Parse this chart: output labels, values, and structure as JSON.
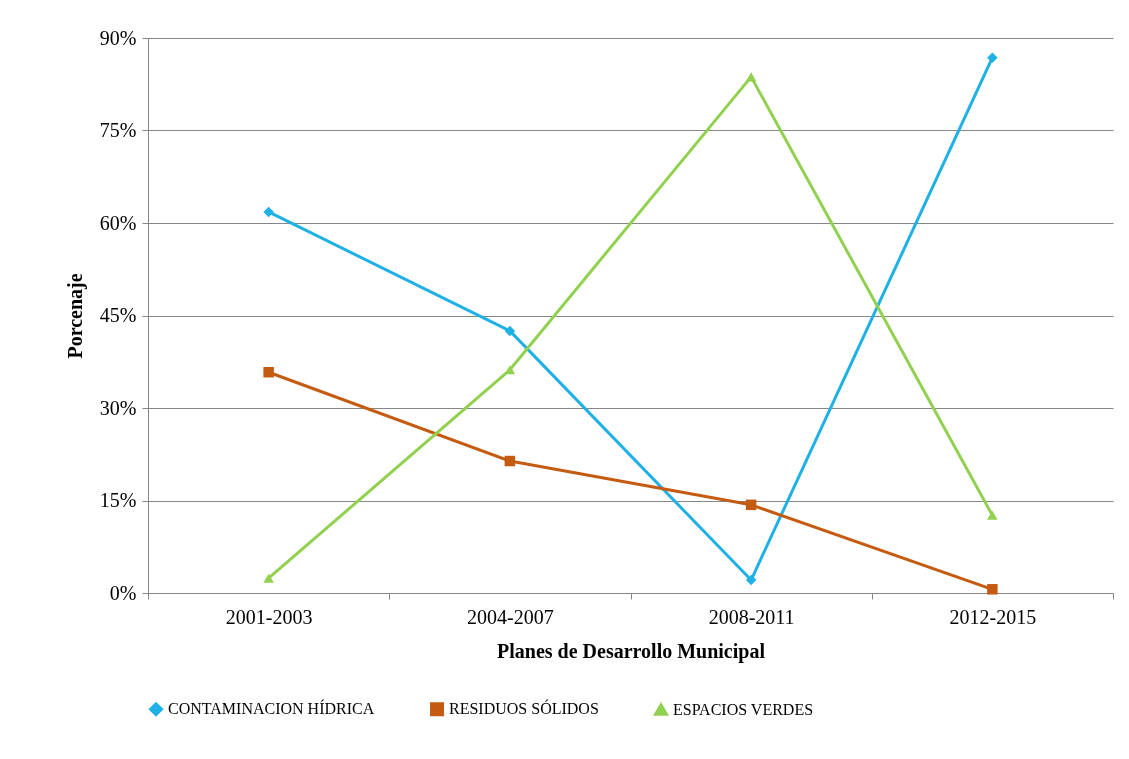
{
  "chart_data": {
    "type": "line",
    "xlabel": "Planes de Desarrollo Municipal",
    "ylabel": "Porcenaje",
    "categories": [
      "2001-2003",
      "2004-2007",
      "2008-2011",
      "2012-2015"
    ],
    "series": [
      {
        "name": "CONTAMINACION HÍDRICA",
        "color": "#1fb1e6",
        "marker": "diamond",
        "values": [
          61.8,
          42.5,
          2.1,
          86.8
        ]
      },
      {
        "name": "RESIDUOS SÓLIDOS",
        "color": "#c55a11",
        "marker": "square",
        "values": [
          35.8,
          21.4,
          14.3,
          0.6
        ]
      },
      {
        "name": "ESPACIOS VERDES",
        "color": "#92d050",
        "marker": "triangle",
        "values": [
          2.4,
          36.2,
          83.7,
          12.6
        ]
      }
    ],
    "ylim": [
      0,
      90
    ],
    "yticks": [
      {
        "value": 0,
        "label": "0%"
      },
      {
        "value": 15,
        "label": "15%"
      },
      {
        "value": 30,
        "label": "30%"
      },
      {
        "value": 45,
        "label": "45%"
      },
      {
        "value": 60,
        "label": "60%"
      },
      {
        "value": 75,
        "label": "75%"
      },
      {
        "value": 90,
        "label": "90%"
      }
    ],
    "grid": "y",
    "legend": "bottom",
    "line_style": "solid"
  }
}
